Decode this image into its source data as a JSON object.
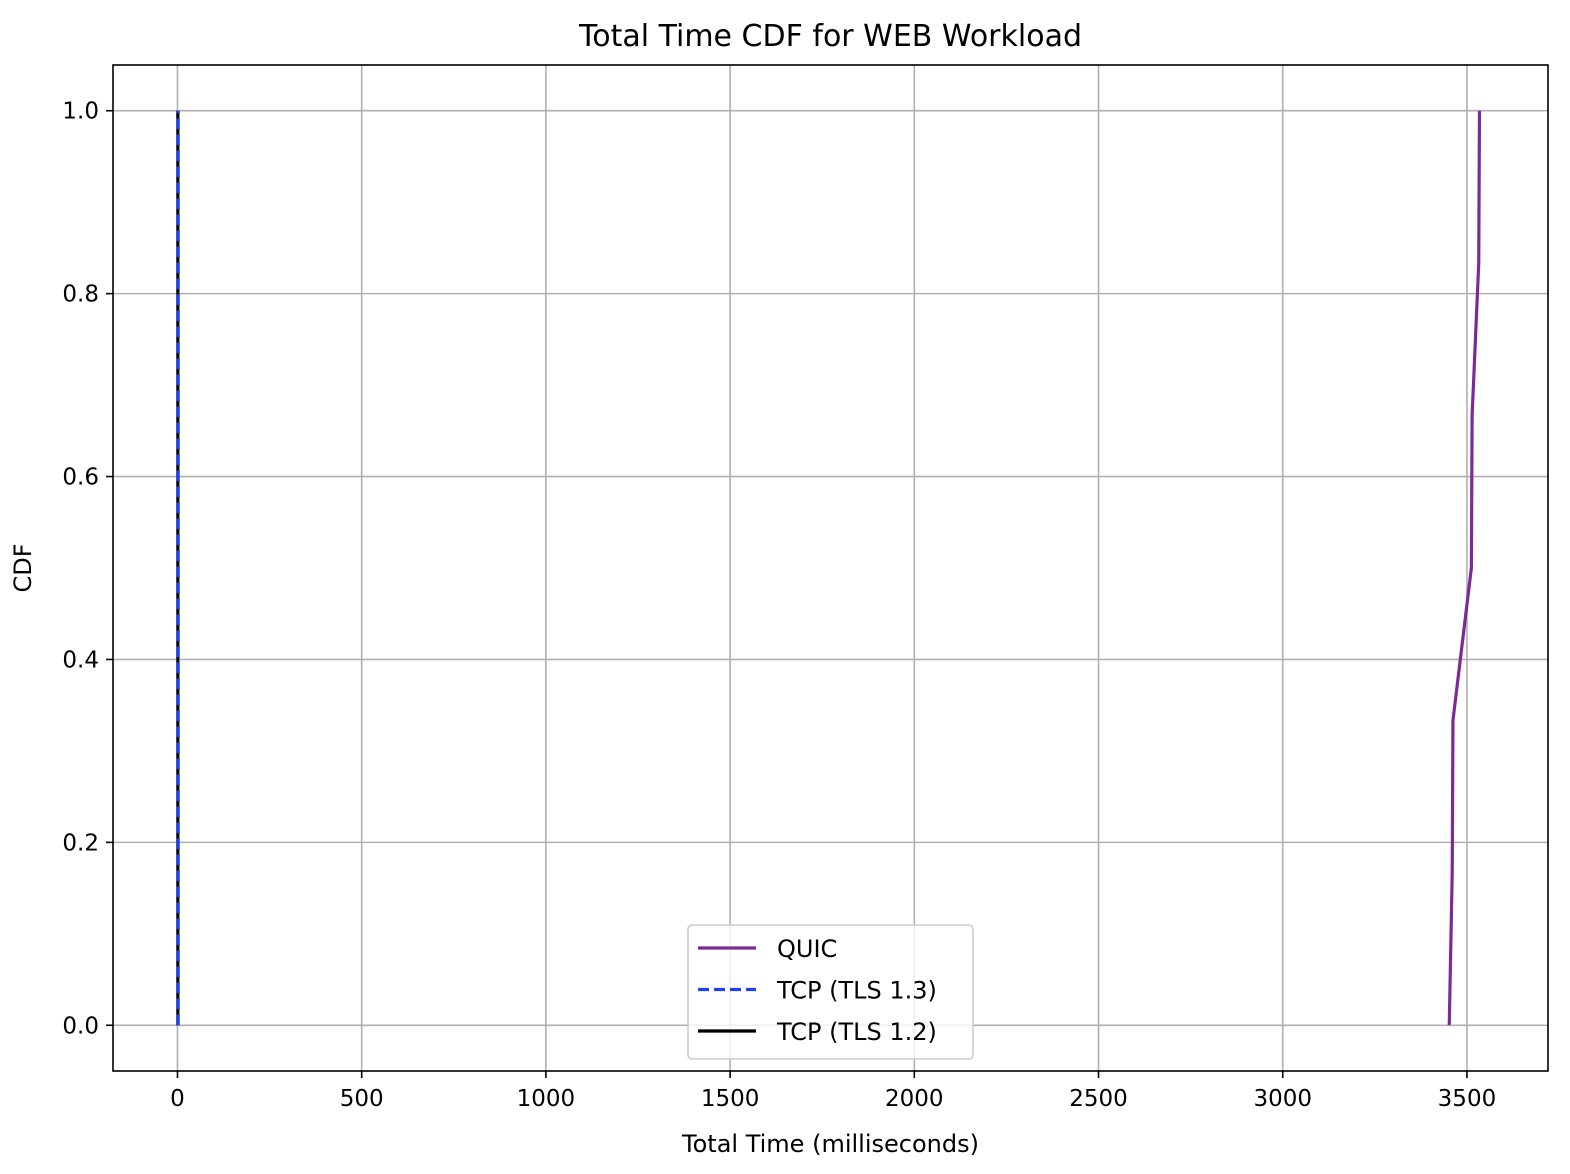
{
  "chart_data": {
    "type": "line",
    "title": "Total Time CDF for WEB Workload",
    "xlabel": "Total Time (milliseconds)",
    "ylabel": "CDF",
    "xlim": [
      -175,
      3720
    ],
    "ylim": [
      -0.05,
      1.05
    ],
    "xticks": [
      0,
      500,
      1000,
      1500,
      2000,
      2500,
      3000,
      3500
    ],
    "yticks": [
      0.0,
      0.2,
      0.4,
      0.6,
      0.8,
      1.0
    ],
    "xtick_labels": [
      "0",
      "500",
      "1000",
      "1500",
      "2000",
      "2500",
      "3000",
      "3500"
    ],
    "ytick_labels": [
      "0.0",
      "0.2",
      "0.4",
      "0.6",
      "0.8",
      "1.0"
    ],
    "grid": true,
    "legend_position": "bottom-center",
    "series": [
      {
        "name": "QUIC",
        "color": "#7b2a96",
        "dash": "solid",
        "points": [
          [
            3452,
            0.0
          ],
          [
            3460,
            0.1667
          ],
          [
            3462,
            0.3333
          ],
          [
            3512,
            0.5
          ],
          [
            3514,
            0.6667
          ],
          [
            3532,
            0.8333
          ],
          [
            3534,
            1.0
          ]
        ]
      },
      {
        "name": "TCP (TLS 1.3)",
        "color": "#1f3ff2",
        "dash": "dashed",
        "points": [
          [
            2,
            0.0
          ],
          [
            2,
            0.1667
          ],
          [
            2,
            0.3333
          ],
          [
            2,
            0.5
          ],
          [
            2,
            0.6667
          ],
          [
            2,
            0.8333
          ],
          [
            2,
            1.0
          ]
        ]
      },
      {
        "name": "TCP (TLS 1.2)",
        "color": "#000000",
        "dash": "solid",
        "points": [
          [
            1,
            0.0
          ],
          [
            1,
            0.1667
          ],
          [
            1,
            0.3333
          ],
          [
            1,
            0.5
          ],
          [
            1,
            0.6667
          ],
          [
            1,
            0.8333
          ],
          [
            1,
            1.0
          ]
        ]
      }
    ]
  }
}
